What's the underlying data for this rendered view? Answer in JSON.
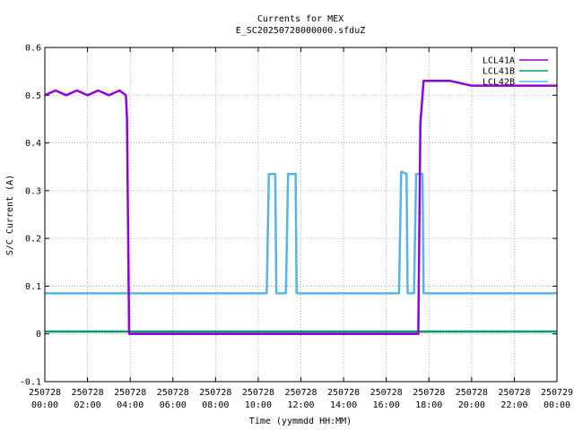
{
  "chart_data": {
    "type": "line",
    "title": "Currents for MEX",
    "subtitle": "E_SC20250728000000.sfduZ",
    "xlabel": "Time (yymmdd HH:MM)",
    "ylabel": "S/C Current (A)",
    "xlim_hours": [
      0,
      24
    ],
    "ylim": [
      -0.1,
      0.6
    ],
    "grid": true,
    "legend_position": "top-right",
    "y_ticks": [
      "-0.1",
      "0",
      "0.1",
      "0.2",
      "0.3",
      "0.4",
      "0.5",
      "0.6"
    ],
    "x_ticks": [
      {
        "date": "250728",
        "time": "00:00"
      },
      {
        "date": "250728",
        "time": "02:00"
      },
      {
        "date": "250728",
        "time": "04:00"
      },
      {
        "date": "250728",
        "time": "06:00"
      },
      {
        "date": "250728",
        "time": "08:00"
      },
      {
        "date": "250728",
        "time": "10:00"
      },
      {
        "date": "250728",
        "time": "12:00"
      },
      {
        "date": "250728",
        "time": "14:00"
      },
      {
        "date": "250728",
        "time": "16:00"
      },
      {
        "date": "250728",
        "time": "18:00"
      },
      {
        "date": "250728",
        "time": "20:00"
      },
      {
        "date": "250728",
        "time": "22:00"
      },
      {
        "date": "250729",
        "time": "00:00"
      }
    ],
    "series": [
      {
        "name": "LCL41A",
        "color": "#9400d3",
        "points": [
          [
            0.0,
            0.5
          ],
          [
            0.5,
            0.51
          ],
          [
            1.0,
            0.5
          ],
          [
            1.5,
            0.51
          ],
          [
            2.0,
            0.5
          ],
          [
            2.5,
            0.51
          ],
          [
            3.0,
            0.5
          ],
          [
            3.5,
            0.51
          ],
          [
            3.8,
            0.5
          ],
          [
            3.85,
            0.45
          ],
          [
            3.95,
            0.0
          ],
          [
            5.0,
            0.0
          ],
          [
            8.0,
            0.0
          ],
          [
            11.0,
            0.0
          ],
          [
            14.0,
            0.0
          ],
          [
            17.0,
            0.0
          ],
          [
            17.5,
            0.0
          ],
          [
            17.6,
            0.44
          ],
          [
            17.75,
            0.53
          ],
          [
            18.0,
            0.53
          ],
          [
            19.0,
            0.53
          ],
          [
            20.0,
            0.52
          ],
          [
            21.0,
            0.52
          ],
          [
            22.0,
            0.52
          ],
          [
            23.0,
            0.52
          ],
          [
            24.0,
            0.52
          ]
        ]
      },
      {
        "name": "LCL41B",
        "color": "#009e73",
        "points": [
          [
            0.0,
            0.005
          ],
          [
            24.0,
            0.005
          ]
        ]
      },
      {
        "name": "LCL42B",
        "color": "#56b4e9",
        "points": [
          [
            0.0,
            0.085
          ],
          [
            10.4,
            0.085
          ],
          [
            10.5,
            0.335
          ],
          [
            10.8,
            0.335
          ],
          [
            10.85,
            0.085
          ],
          [
            11.3,
            0.085
          ],
          [
            11.4,
            0.335
          ],
          [
            11.75,
            0.335
          ],
          [
            11.8,
            0.085
          ],
          [
            16.6,
            0.085
          ],
          [
            16.7,
            0.34
          ],
          [
            16.95,
            0.335
          ],
          [
            17.0,
            0.085
          ],
          [
            17.3,
            0.085
          ],
          [
            17.4,
            0.335
          ],
          [
            17.7,
            0.335
          ],
          [
            17.75,
            0.085
          ],
          [
            24.0,
            0.085
          ]
        ]
      }
    ]
  }
}
